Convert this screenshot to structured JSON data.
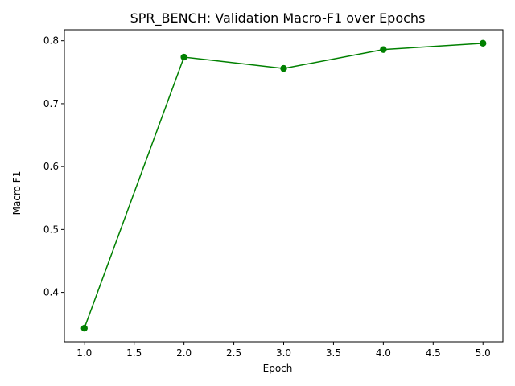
{
  "chart_data": {
    "type": "line",
    "title": "SPR_BENCH: Validation Macro-F1 over Epochs",
    "xlabel": "Epoch",
    "ylabel": "Macro F1",
    "xlim": [
      0.8,
      5.2
    ],
    "ylim": [
      0.3215,
      0.8175
    ],
    "xticks": [
      1.0,
      1.5,
      2.0,
      2.5,
      3.0,
      3.5,
      4.0,
      4.5,
      5.0
    ],
    "xtick_labels": [
      "1.0",
      "1.5",
      "2.0",
      "2.5",
      "3.0",
      "3.5",
      "4.0",
      "4.5",
      "5.0"
    ],
    "yticks": [
      0.4,
      0.5,
      0.6,
      0.7,
      0.8
    ],
    "ytick_labels": [
      "0.4",
      "0.5",
      "0.6",
      "0.7",
      "0.8"
    ],
    "grid": false,
    "series": [
      {
        "color": "#008000",
        "marker": "circle",
        "x": [
          1,
          2,
          3,
          4,
          5
        ],
        "y": [
          0.343,
          0.774,
          0.756,
          0.786,
          0.796
        ]
      }
    ]
  }
}
